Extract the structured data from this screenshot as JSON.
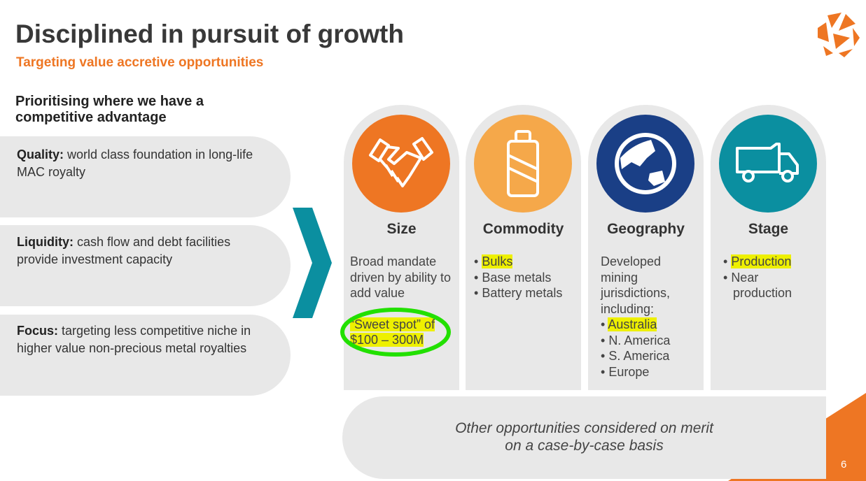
{
  "title": "Disciplined in pursuit of growth",
  "subtitle": "Targeting value accretive opportunities",
  "left_heading": "Prioritising where we have a competitive advantage",
  "pillars": [
    {
      "label": "Quality:",
      "text": " world class foundation in long-life MAC royalty"
    },
    {
      "label": "Liquidity:",
      "text": " cash flow and debt facilities provide investment capacity"
    },
    {
      "label": "Focus:",
      "text": " targeting less competitive niche in higher value non-precious metal royalties"
    }
  ],
  "columns": [
    {
      "title": "Size",
      "icon": "handshake-icon",
      "color": "#EE7623",
      "text": "Broad mandate driven by ability to add value",
      "highlight": "“Sweet spot” of $100 – 300M"
    },
    {
      "title": "Commodity",
      "icon": "battery-icon",
      "color": "#F5A84A",
      "bullets": [
        "Bulks",
        "Base metals",
        "Battery metals"
      ]
    },
    {
      "title": "Geography",
      "icon": "globe-icon",
      "color": "#1A3F86",
      "text": "Developed mining jurisdictions, including:",
      "bullets": [
        "Australia",
        "N. America",
        "S. America",
        "Europe"
      ]
    },
    {
      "title": "Stage",
      "icon": "truck-icon",
      "color": "#0B8FA0",
      "bullets": [
        "Production",
        "Near production"
      ]
    }
  ],
  "bottom": {
    "line1": "Other opportunities considered on merit",
    "line2": "on a case-by-case basis"
  },
  "page_number": "6",
  "colors": {
    "accent": "#EE7623",
    "teal": "#0B8FA0",
    "annotation_circle": "#22E000",
    "highlight": "#EEF000"
  }
}
